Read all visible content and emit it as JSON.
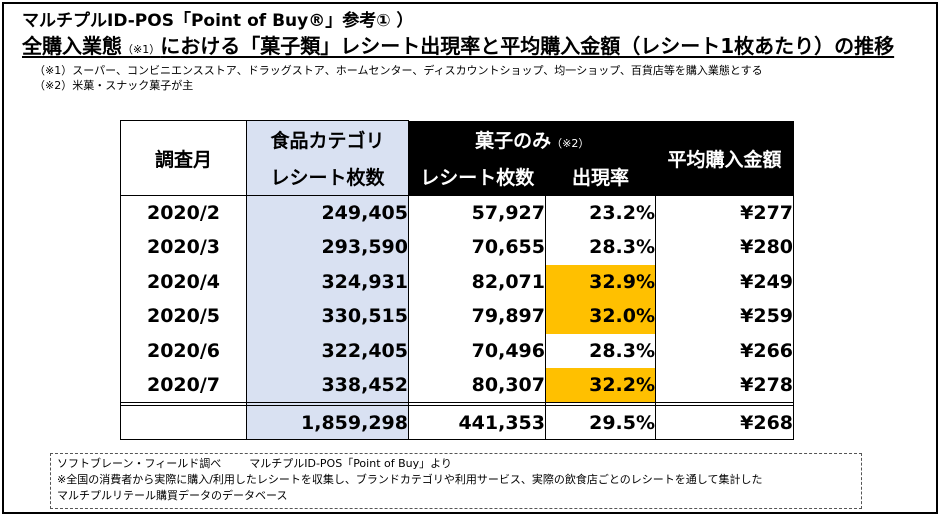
{
  "heading": {
    "line1": "マルチプルID-POS「Point of Buy®」参考① ）",
    "line2_a": "全購入業態",
    "line2_note": "（※1）",
    "line2_b": "における「菓子類」レシート出現率と平均購入金額（レシート1枚あたり）の推移"
  },
  "notes": [
    "（※1）スーパー、コンビニエンスストア、ドラッグストア、ホームセンター、ディスカウントショップ、均一ショップ、百貨店等を購入業態とする",
    "（※2）米菓・スナック菓子が主"
  ],
  "table": {
    "col_month": "調査月",
    "col_food_line1": "食品カテゴリ",
    "col_food_line2": "レシート枚数",
    "col_kashi_group": "菓子のみ",
    "col_kashi_note": "（※2）",
    "col_kashi_count": "レシート枚数",
    "col_kashi_rate": "出現率",
    "col_avg": "平均購入金額",
    "highlight_color": "#ffc000",
    "food_col_color": "#d9e1f2",
    "rows": [
      {
        "month": "2020/2",
        "food": "249,405",
        "kcount": "57,927",
        "rate": "23.2%",
        "avg": "¥277"
      },
      {
        "month": "2020/3",
        "food": "293,590",
        "kcount": "70,655",
        "rate": "28.3%",
        "avg": "¥280"
      },
      {
        "month": "2020/4",
        "food": "324,931",
        "kcount": "82,071",
        "rate": "32.9%",
        "avg": "¥249"
      },
      {
        "month": "2020/5",
        "food": "330,515",
        "kcount": "79,897",
        "rate": "32.0%",
        "avg": "¥259"
      },
      {
        "month": "2020/6",
        "food": "322,405",
        "kcount": "70,496",
        "rate": "28.3%",
        "avg": "¥266"
      },
      {
        "month": "2020/7",
        "food": "338,452",
        "kcount": "80,307",
        "rate": "32.2%",
        "avg": "¥278"
      }
    ],
    "total": {
      "food": "1,859,298",
      "kcount": "441,353",
      "rate": "29.5%",
      "avg": "¥268"
    }
  },
  "source": {
    "line1_a": "ソフトブレーン・フィールド調べ",
    "line1_b": "マルチプルID-POS「Point of Buy」より",
    "line2": "※全国の消費者から実際に購入/利用したレシートを収集し、ブランドカテゴリや利用サービス、実際の飲食店ごとのレシートを通して集計した",
    "line3": "マルチプルリテール購買データのデータベース"
  }
}
